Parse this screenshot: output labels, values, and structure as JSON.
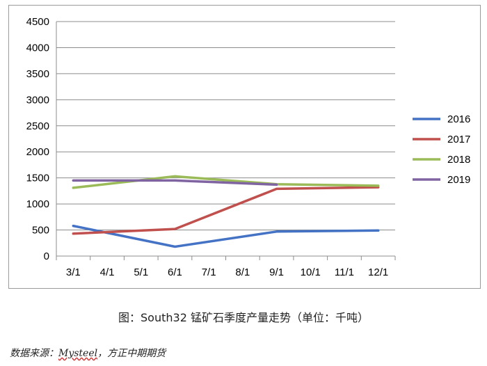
{
  "chart_data": {
    "type": "line",
    "categories": [
      "3/1",
      "4/1",
      "5/1",
      "6/1",
      "7/1",
      "8/1",
      "9/1",
      "10/1",
      "11/1",
      "12/1"
    ],
    "ylim": [
      0,
      4500
    ],
    "yticks": [
      0,
      500,
      1000,
      1500,
      2000,
      2500,
      3000,
      3500,
      4000,
      4500
    ],
    "grid": true,
    "legend_position": "right",
    "series": [
      {
        "name": "2016",
        "color": "#4472c4",
        "x": [
          "3/1",
          "6/1",
          "9/1",
          "12/1"
        ],
        "values": [
          580,
          180,
          470,
          490
        ]
      },
      {
        "name": "2017",
        "color": "#c0504d",
        "x": [
          "3/1",
          "6/1",
          "9/1",
          "12/1"
        ],
        "values": [
          430,
          520,
          1290,
          1320
        ]
      },
      {
        "name": "2018",
        "color": "#9bbb59",
        "x": [
          "3/1",
          "6/1",
          "9/1",
          "12/1"
        ],
        "values": [
          1310,
          1530,
          1380,
          1350
        ]
      },
      {
        "name": "2019",
        "color": "#8064a2",
        "x": [
          "3/1",
          "6/1",
          "9/1"
        ],
        "values": [
          1450,
          1450,
          1370
        ]
      }
    ]
  },
  "caption": "图：South32 锰矿石季度产量走势（单位：千吨）",
  "source": {
    "prefix": "数据来源：",
    "brand": "Mysteel",
    "suffix": "，方正中期期货"
  }
}
